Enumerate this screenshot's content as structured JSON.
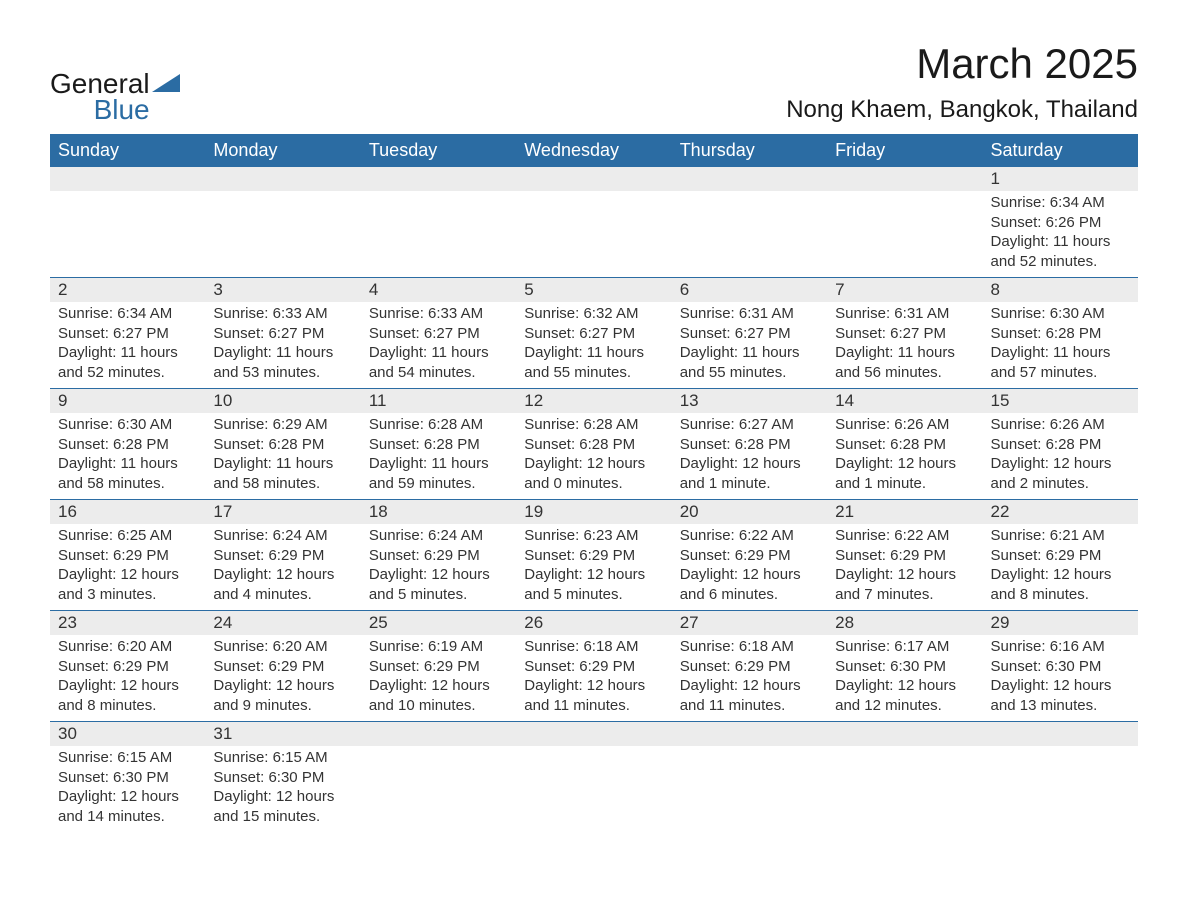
{
  "logo": {
    "text_general": "General",
    "text_blue": "Blue",
    "shape_color": "#2b6ca3"
  },
  "title": {
    "month": "March 2025",
    "location": "Nong Khaem, Bangkok, Thailand"
  },
  "colors": {
    "header_bg": "#2b6ca3",
    "header_text": "#ffffff",
    "daynum_bg": "#ececec",
    "text": "#333333",
    "row_border": "#2b6ca3",
    "page_bg": "#ffffff"
  },
  "day_headers": [
    "Sunday",
    "Monday",
    "Tuesday",
    "Wednesday",
    "Thursday",
    "Friday",
    "Saturday"
  ],
  "weeks": [
    [
      null,
      null,
      null,
      null,
      null,
      null,
      {
        "n": "1",
        "sunrise": "Sunrise: 6:34 AM",
        "sunset": "Sunset: 6:26 PM",
        "daylight": "Daylight: 11 hours and 52 minutes."
      }
    ],
    [
      {
        "n": "2",
        "sunrise": "Sunrise: 6:34 AM",
        "sunset": "Sunset: 6:27 PM",
        "daylight": "Daylight: 11 hours and 52 minutes."
      },
      {
        "n": "3",
        "sunrise": "Sunrise: 6:33 AM",
        "sunset": "Sunset: 6:27 PM",
        "daylight": "Daylight: 11 hours and 53 minutes."
      },
      {
        "n": "4",
        "sunrise": "Sunrise: 6:33 AM",
        "sunset": "Sunset: 6:27 PM",
        "daylight": "Daylight: 11 hours and 54 minutes."
      },
      {
        "n": "5",
        "sunrise": "Sunrise: 6:32 AM",
        "sunset": "Sunset: 6:27 PM",
        "daylight": "Daylight: 11 hours and 55 minutes."
      },
      {
        "n": "6",
        "sunrise": "Sunrise: 6:31 AM",
        "sunset": "Sunset: 6:27 PM",
        "daylight": "Daylight: 11 hours and 55 minutes."
      },
      {
        "n": "7",
        "sunrise": "Sunrise: 6:31 AM",
        "sunset": "Sunset: 6:27 PM",
        "daylight": "Daylight: 11 hours and 56 minutes."
      },
      {
        "n": "8",
        "sunrise": "Sunrise: 6:30 AM",
        "sunset": "Sunset: 6:28 PM",
        "daylight": "Daylight: 11 hours and 57 minutes."
      }
    ],
    [
      {
        "n": "9",
        "sunrise": "Sunrise: 6:30 AM",
        "sunset": "Sunset: 6:28 PM",
        "daylight": "Daylight: 11 hours and 58 minutes."
      },
      {
        "n": "10",
        "sunrise": "Sunrise: 6:29 AM",
        "sunset": "Sunset: 6:28 PM",
        "daylight": "Daylight: 11 hours and 58 minutes."
      },
      {
        "n": "11",
        "sunrise": "Sunrise: 6:28 AM",
        "sunset": "Sunset: 6:28 PM",
        "daylight": "Daylight: 11 hours and 59 minutes."
      },
      {
        "n": "12",
        "sunrise": "Sunrise: 6:28 AM",
        "sunset": "Sunset: 6:28 PM",
        "daylight": "Daylight: 12 hours and 0 minutes."
      },
      {
        "n": "13",
        "sunrise": "Sunrise: 6:27 AM",
        "sunset": "Sunset: 6:28 PM",
        "daylight": "Daylight: 12 hours and 1 minute."
      },
      {
        "n": "14",
        "sunrise": "Sunrise: 6:26 AM",
        "sunset": "Sunset: 6:28 PM",
        "daylight": "Daylight: 12 hours and 1 minute."
      },
      {
        "n": "15",
        "sunrise": "Sunrise: 6:26 AM",
        "sunset": "Sunset: 6:28 PM",
        "daylight": "Daylight: 12 hours and 2 minutes."
      }
    ],
    [
      {
        "n": "16",
        "sunrise": "Sunrise: 6:25 AM",
        "sunset": "Sunset: 6:29 PM",
        "daylight": "Daylight: 12 hours and 3 minutes."
      },
      {
        "n": "17",
        "sunrise": "Sunrise: 6:24 AM",
        "sunset": "Sunset: 6:29 PM",
        "daylight": "Daylight: 12 hours and 4 minutes."
      },
      {
        "n": "18",
        "sunrise": "Sunrise: 6:24 AM",
        "sunset": "Sunset: 6:29 PM",
        "daylight": "Daylight: 12 hours and 5 minutes."
      },
      {
        "n": "19",
        "sunrise": "Sunrise: 6:23 AM",
        "sunset": "Sunset: 6:29 PM",
        "daylight": "Daylight: 12 hours and 5 minutes."
      },
      {
        "n": "20",
        "sunrise": "Sunrise: 6:22 AM",
        "sunset": "Sunset: 6:29 PM",
        "daylight": "Daylight: 12 hours and 6 minutes."
      },
      {
        "n": "21",
        "sunrise": "Sunrise: 6:22 AM",
        "sunset": "Sunset: 6:29 PM",
        "daylight": "Daylight: 12 hours and 7 minutes."
      },
      {
        "n": "22",
        "sunrise": "Sunrise: 6:21 AM",
        "sunset": "Sunset: 6:29 PM",
        "daylight": "Daylight: 12 hours and 8 minutes."
      }
    ],
    [
      {
        "n": "23",
        "sunrise": "Sunrise: 6:20 AM",
        "sunset": "Sunset: 6:29 PM",
        "daylight": "Daylight: 12 hours and 8 minutes."
      },
      {
        "n": "24",
        "sunrise": "Sunrise: 6:20 AM",
        "sunset": "Sunset: 6:29 PM",
        "daylight": "Daylight: 12 hours and 9 minutes."
      },
      {
        "n": "25",
        "sunrise": "Sunrise: 6:19 AM",
        "sunset": "Sunset: 6:29 PM",
        "daylight": "Daylight: 12 hours and 10 minutes."
      },
      {
        "n": "26",
        "sunrise": "Sunrise: 6:18 AM",
        "sunset": "Sunset: 6:29 PM",
        "daylight": "Daylight: 12 hours and 11 minutes."
      },
      {
        "n": "27",
        "sunrise": "Sunrise: 6:18 AM",
        "sunset": "Sunset: 6:29 PM",
        "daylight": "Daylight: 12 hours and 11 minutes."
      },
      {
        "n": "28",
        "sunrise": "Sunrise: 6:17 AM",
        "sunset": "Sunset: 6:30 PM",
        "daylight": "Daylight: 12 hours and 12 minutes."
      },
      {
        "n": "29",
        "sunrise": "Sunrise: 6:16 AM",
        "sunset": "Sunset: 6:30 PM",
        "daylight": "Daylight: 12 hours and 13 minutes."
      }
    ],
    [
      {
        "n": "30",
        "sunrise": "Sunrise: 6:15 AM",
        "sunset": "Sunset: 6:30 PM",
        "daylight": "Daylight: 12 hours and 14 minutes."
      },
      {
        "n": "31",
        "sunrise": "Sunrise: 6:15 AM",
        "sunset": "Sunset: 6:30 PM",
        "daylight": "Daylight: 12 hours and 15 minutes."
      },
      null,
      null,
      null,
      null,
      null
    ]
  ]
}
